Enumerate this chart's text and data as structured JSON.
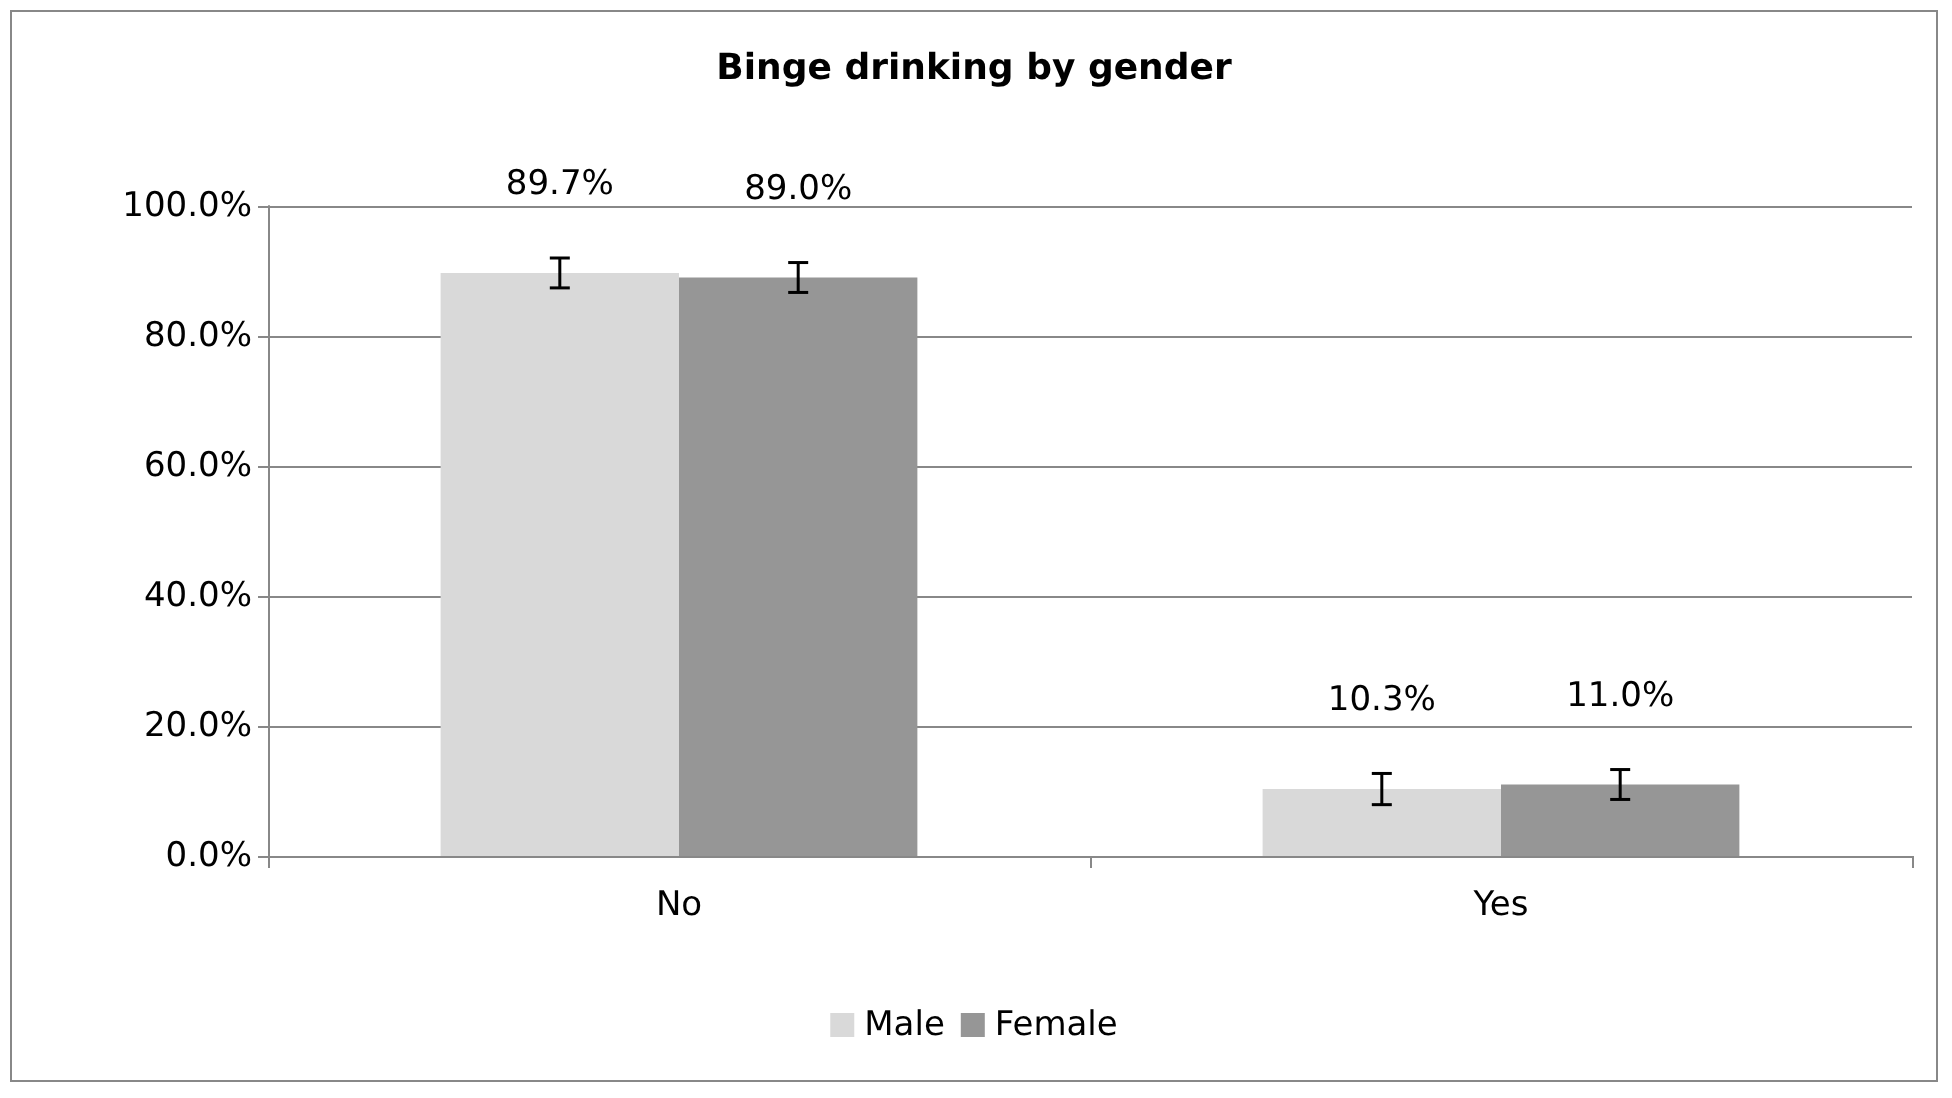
{
  "chart_data": {
    "type": "bar",
    "title": "Binge drinking by gender",
    "categories": [
      "No",
      "Yes"
    ],
    "series": [
      {
        "name": "Male",
        "color": "#d9d9d9",
        "values": [
          89.7,
          10.3
        ],
        "errors": [
          2.3,
          2.4
        ],
        "value_labels": [
          "89.7%",
          "10.3%"
        ]
      },
      {
        "name": "Female",
        "color": "#969696",
        "values": [
          89.0,
          11.0
        ],
        "errors": [
          2.3,
          2.3
        ],
        "value_labels": [
          "89.0%",
          "11.0%"
        ]
      }
    ],
    "ylim": [
      0,
      100
    ],
    "yticks": [
      {
        "value": 0,
        "label": "0.0%"
      },
      {
        "value": 20,
        "label": "20.0%"
      },
      {
        "value": 40,
        "label": "40.0%"
      },
      {
        "value": 60,
        "label": "60.0%"
      },
      {
        "value": 80,
        "label": "80.0%"
      },
      {
        "value": 100,
        "label": "100.0%"
      }
    ],
    "grid": "y",
    "legend": "bottom"
  }
}
